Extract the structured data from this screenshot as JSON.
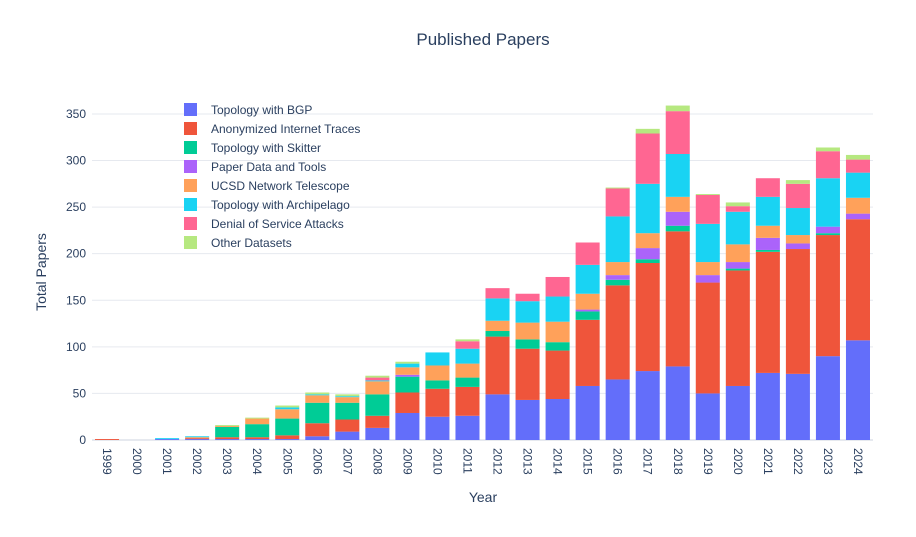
{
  "chart_data": {
    "type": "bar",
    "stacked": true,
    "title": "Published Papers",
    "xlabel": "Year",
    "ylabel": "Total Papers",
    "ylim": [
      0,
      380
    ],
    "yticks": [
      0,
      50,
      100,
      150,
      200,
      250,
      300,
      350
    ],
    "grid": true,
    "legend_position": "top-left",
    "categories": [
      "1999",
      "2000",
      "2001",
      "2002",
      "2003",
      "2004",
      "2005",
      "2006",
      "2007",
      "2008",
      "2009",
      "2010",
      "2011",
      "2012",
      "2013",
      "2014",
      "2015",
      "2016",
      "2017",
      "2018",
      "2019",
      "2020",
      "2021",
      "2022",
      "2023",
      "2024"
    ],
    "series": [
      {
        "name": "Topology with BGP",
        "color": "#636efa",
        "values": [
          0,
          0,
          1,
          1,
          1,
          1,
          1,
          4,
          9,
          13,
          29,
          25,
          26,
          49,
          43,
          44,
          58,
          65,
          74,
          79,
          50,
          58,
          72,
          71,
          90,
          107
        ]
      },
      {
        "name": "Anonymized Internet Traces",
        "color": "#ef553b",
        "values": [
          1,
          0,
          0,
          1,
          2,
          2,
          4,
          14,
          13,
          13,
          22,
          30,
          31,
          62,
          55,
          52,
          71,
          101,
          116,
          145,
          119,
          124,
          130,
          134,
          130,
          130
        ]
      },
      {
        "name": "Topology with Skitter",
        "color": "#00cc96",
        "values": [
          0,
          0,
          0,
          0,
          11,
          14,
          18,
          22,
          18,
          23,
          17,
          9,
          10,
          6,
          10,
          9,
          9,
          6,
          4,
          6,
          0,
          2,
          2,
          0,
          2,
          0
        ]
      },
      {
        "name": "Paper Data and Tools",
        "color": "#ab63fa",
        "values": [
          0,
          0,
          0,
          0,
          0,
          0,
          0,
          0,
          0,
          0,
          2,
          0,
          0,
          0,
          0,
          0,
          2,
          5,
          12,
          15,
          8,
          7,
          13,
          6,
          7,
          6
        ]
      },
      {
        "name": "UCSD Network Telescope",
        "color": "#ffa15a",
        "values": [
          0,
          0,
          0,
          1,
          1,
          6,
          10,
          8,
          6,
          14,
          8,
          16,
          15,
          11,
          18,
          22,
          17,
          14,
          16,
          16,
          14,
          19,
          13,
          9,
          0,
          17
        ]
      },
      {
        "name": "Topology with Archipelago",
        "color": "#19d3f3",
        "values": [
          0,
          0,
          1,
          1,
          0,
          0,
          2,
          1,
          1,
          1,
          4,
          14,
          16,
          24,
          23,
          27,
          31,
          49,
          53,
          46,
          41,
          35,
          31,
          29,
          52,
          27
        ]
      },
      {
        "name": "Denial of Service Attacks",
        "color": "#ff6692",
        "values": [
          0,
          0,
          0,
          0,
          0,
          0,
          0,
          0,
          0,
          3,
          0,
          0,
          8,
          11,
          8,
          21,
          24,
          30,
          54,
          46,
          31,
          6,
          20,
          26,
          29,
          14
        ]
      },
      {
        "name": "Other Datasets",
        "color": "#b6e880",
        "values": [
          0,
          0,
          0,
          0,
          1,
          1,
          2,
          2,
          2,
          2,
          2,
          0,
          2,
          0,
          0,
          0,
          0,
          1,
          5,
          6,
          1,
          4,
          0,
          4,
          4,
          5
        ]
      }
    ]
  }
}
